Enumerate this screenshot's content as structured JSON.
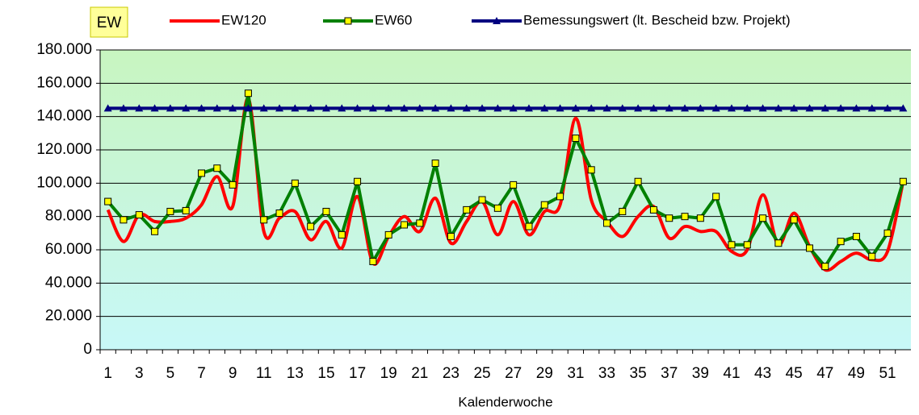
{
  "chart_data": {
    "type": "line",
    "ylabel": "EW",
    "xlabel": "Kalenderwoche",
    "categories": [
      "1",
      null,
      "3",
      null,
      "5",
      null,
      "7",
      null,
      "9",
      null,
      "11",
      null,
      "13",
      null,
      "15",
      null,
      "17",
      null,
      "19",
      null,
      "21",
      null,
      "23",
      null,
      "25",
      null,
      "27",
      null,
      "29",
      null,
      "31",
      null,
      "33",
      null,
      "35",
      null,
      "37",
      null,
      "39",
      null,
      "41",
      null,
      "43",
      null,
      "45",
      null,
      "47",
      null,
      "49",
      null,
      "51",
      null
    ],
    "series": [
      {
        "name": "EW120",
        "color": "#ff0000",
        "smooth": true,
        "marker": "none",
        "values": [
          84000,
          65000,
          81000,
          77000,
          77000,
          79000,
          87000,
          104000,
          86000,
          151000,
          71000,
          79000,
          83000,
          66000,
          77000,
          61000,
          92000,
          52000,
          68000,
          80000,
          71000,
          91000,
          64000,
          77000,
          89000,
          69000,
          89000,
          69000,
          83000,
          87000,
          139000,
          90000,
          77000,
          68000,
          80000,
          86000,
          67000,
          74000,
          71000,
          71000,
          59000,
          60000,
          93000,
          63000,
          82000,
          62000,
          48000,
          53000,
          58000,
          54000,
          59000,
          101000
        ]
      },
      {
        "name": "EW60",
        "color": "#008000",
        "smooth": false,
        "marker": "square",
        "values": [
          89000,
          78000,
          81000,
          71000,
          83000,
          83500,
          106000,
          109000,
          99000,
          154000,
          78000,
          82000,
          100000,
          74000,
          83000,
          69000,
          101000,
          53000,
          69000,
          75000,
          76000,
          112000,
          68000,
          84000,
          90000,
          85000,
          99000,
          74000,
          87000,
          92000,
          127000,
          108000,
          76000,
          83000,
          101000,
          84000,
          79000,
          80000,
          79000,
          92000,
          63000,
          63000,
          79000,
          64000,
          78000,
          61000,
          50000,
          65000,
          68000,
          56000,
          70000,
          101000
        ]
      },
      {
        "name": "Bemessungswert (lt. Bescheid bzw. Projekt)",
        "color": "#000080",
        "smooth": false,
        "marker": "triangle",
        "values": [
          145000,
          145000,
          145000,
          145000,
          145000,
          145000,
          145000,
          145000,
          145000,
          145000,
          145000,
          145000,
          145000,
          145000,
          145000,
          145000,
          145000,
          145000,
          145000,
          145000,
          145000,
          145000,
          145000,
          145000,
          145000,
          145000,
          145000,
          145000,
          145000,
          145000,
          145000,
          145000,
          145000,
          145000,
          145000,
          145000,
          145000,
          145000,
          145000,
          145000,
          145000,
          145000,
          145000,
          145000,
          145000,
          145000,
          145000,
          145000,
          145000,
          145000,
          145000,
          145000
        ]
      }
    ],
    "ylim": [
      0,
      180000
    ],
    "yticks": [
      0,
      {
        "value": 20000,
        "label": "20.000"
      },
      {
        "value": 40000,
        "label": "40.000"
      },
      {
        "value": 60000,
        "label": "60.000"
      },
      {
        "value": 80000,
        "label": "80.000"
      },
      {
        "value": 100000,
        "label": "100.000"
      },
      {
        "value": 120000,
        "label": "120.000"
      },
      {
        "value": 140000,
        "label": "140.000"
      },
      {
        "value": 160000,
        "label": "160.000"
      },
      {
        "value": 180000,
        "label": "180.000"
      }
    ],
    "grid": true,
    "legend": "top"
  }
}
